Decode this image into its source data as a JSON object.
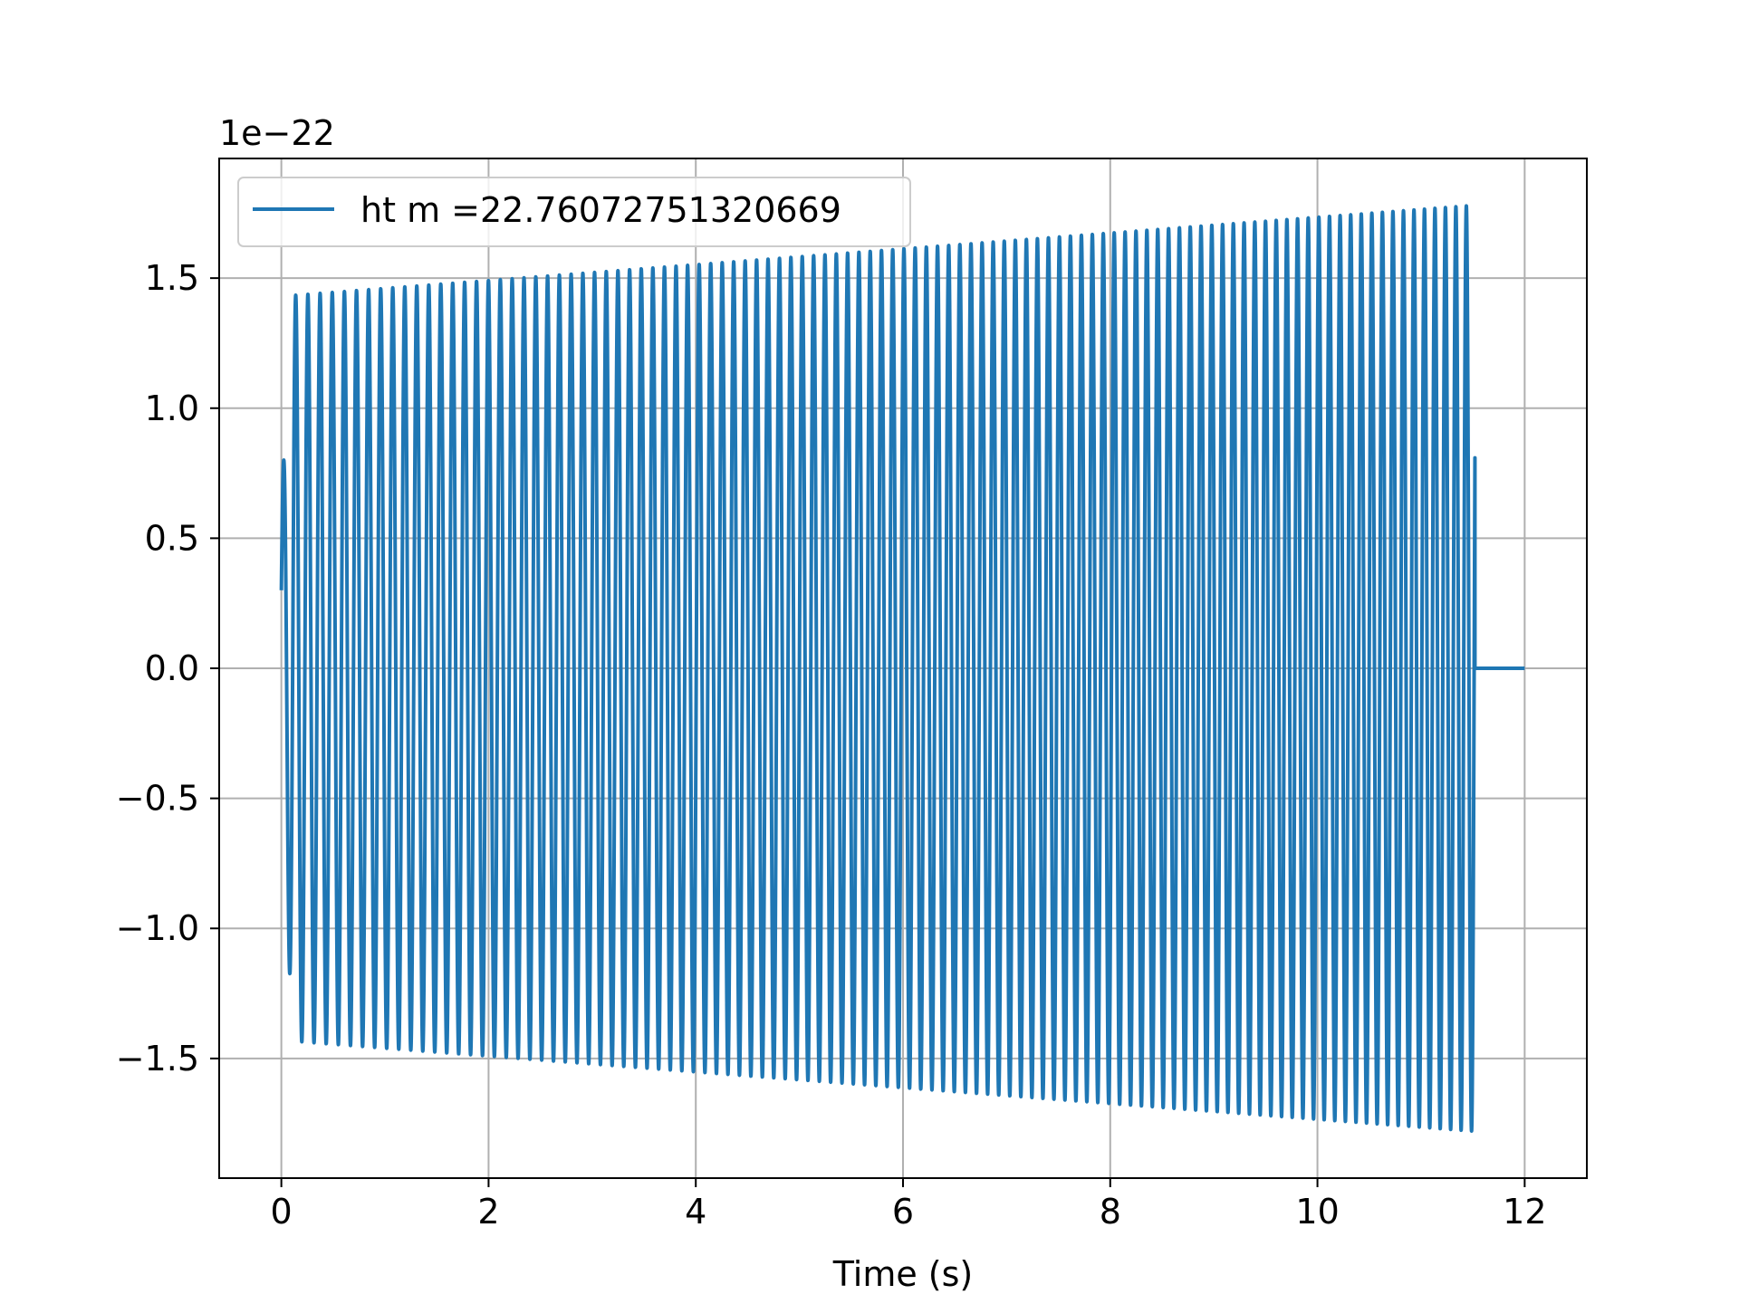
{
  "chart_data": {
    "type": "line",
    "title": "",
    "xlabel": "Time (s)",
    "ylabel": "",
    "y_offset_label": "1e−22",
    "xlim": [
      -0.6,
      12.6
    ],
    "ylim": [
      -1.96,
      1.96
    ],
    "x_ticks": [
      0,
      2,
      4,
      6,
      8,
      10,
      12
    ],
    "x_tick_labels": [
      "0",
      "2",
      "4",
      "6",
      "8",
      "10",
      "12"
    ],
    "y_ticks": [
      -1.5,
      -1.0,
      -0.5,
      0.0,
      0.5,
      1.0,
      1.5
    ],
    "y_tick_labels": [
      "−1.5",
      "−1.0",
      "−0.5",
      "0.0",
      "0.5",
      "1.0",
      "1.5"
    ],
    "grid": true,
    "legend_position": "top-left",
    "series": [
      {
        "name": "ht m =22.76072751320669",
        "color": "#1f77b4",
        "signal": {
          "kind": "chirp",
          "t_start": 0,
          "t_end": 11.52,
          "t_final": 12.0,
          "first_value": 0.3,
          "first_peak": 0.66,
          "amplitude_start": 1.43,
          "amplitude_end": 1.78,
          "cycles": 106,
          "after_end_value": 0.0
        }
      }
    ]
  }
}
